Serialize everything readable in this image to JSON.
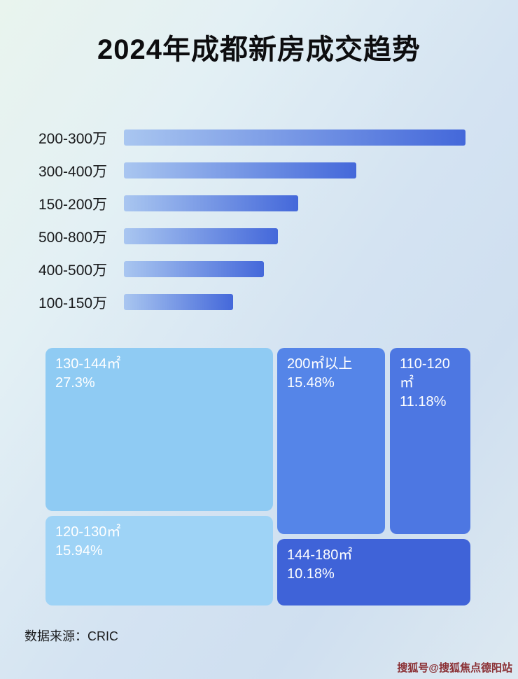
{
  "title": "2024年成都新房成交趋势",
  "chart_data": [
    {
      "type": "bar",
      "orientation": "horizontal",
      "categories": [
        "200-300万",
        "300-400万",
        "150-200万",
        "500-800万",
        "400-500万",
        "100-150万"
      ],
      "values": [
        100,
        68,
        51,
        45,
        41,
        32
      ],
      "value_unit": "relative bar length % of longest bar (no numeric labels shown in image)",
      "bar_color_start": "#a9c6f0",
      "bar_color_end": "#4468da",
      "grid": false,
      "legend": false
    },
    {
      "type": "treemap",
      "items": [
        {
          "label": "130-144㎡",
          "value": 27.3,
          "display": "27.3%",
          "color": "#8fcbf3"
        },
        {
          "label": "200㎡以上",
          "value": 15.48,
          "display": "15.48%",
          "color": "#5585e8"
        },
        {
          "label": "110-120㎡",
          "value": 11.18,
          "display": "11.18%",
          "color": "#4d77e2"
        },
        {
          "label": "120-130㎡",
          "value": 15.94,
          "display": "15.94%",
          "color": "#9ed3f6"
        },
        {
          "label": "144-180㎡",
          "value": 10.18,
          "display": "10.18%",
          "color": "#3f63d8"
        }
      ],
      "legend": false
    }
  ],
  "footer": {
    "source_label": "数据来源：CRIC"
  },
  "watermark": {
    "text": "搜狐号@搜狐焦点德阳站",
    "color": "#8a2f33"
  }
}
